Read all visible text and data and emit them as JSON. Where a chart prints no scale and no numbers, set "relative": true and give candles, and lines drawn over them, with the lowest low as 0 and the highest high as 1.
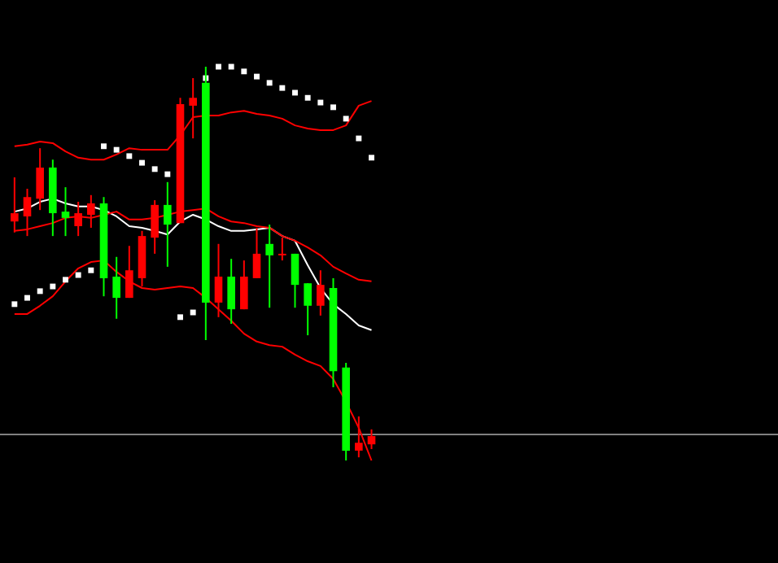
{
  "chart_data": {
    "type": "candlestick",
    "relative": true,
    "categories": [
      null,
      null,
      null,
      null,
      null,
      null,
      null,
      null,
      null,
      null,
      null,
      null,
      null,
      null,
      null,
      null,
      null,
      null,
      null,
      null,
      null,
      null,
      null,
      null,
      null,
      null,
      null,
      null,
      null,
      null,
      null,
      null,
      null,
      null,
      null,
      null,
      null,
      null,
      null,
      null,
      null,
      null,
      null,
      null,
      null,
      null,
      null,
      null,
      null,
      null,
      null,
      null,
      null,
      null,
      null,
      null,
      null,
      null,
      null,
      null
    ],
    "ohlc": [
      [
        0.607,
        0.719,
        0.579,
        0.628
      ],
      [
        0.62,
        0.69,
        0.57,
        0.669
      ],
      [
        0.665,
        0.793,
        0.636,
        0.744
      ],
      [
        0.744,
        0.764,
        0.57,
        0.628
      ],
      [
        0.632,
        0.694,
        0.57,
        0.616
      ],
      [
        0.595,
        0.657,
        0.57,
        0.628
      ],
      [
        0.624,
        0.674,
        0.591,
        0.653
      ],
      [
        0.653,
        0.669,
        0.417,
        0.463
      ],
      [
        0.467,
        0.517,
        0.36,
        0.413
      ],
      [
        0.413,
        0.545,
        0.413,
        0.483
      ],
      [
        0.463,
        0.583,
        0.442,
        0.57
      ],
      [
        0.566,
        0.661,
        0.525,
        0.649
      ],
      [
        0.649,
        0.707,
        0.492,
        0.599
      ],
      [
        0.603,
        0.921,
        0.603,
        0.905
      ],
      [
        0.901,
        0.971,
        0.818,
        0.921
      ],
      [
        0.959,
        1,
        0.306,
        0.401
      ],
      [
        0.401,
        0.55,
        0.364,
        0.467
      ],
      [
        0.467,
        0.512,
        0.347,
        0.384
      ],
      [
        0.384,
        0.508,
        0.384,
        0.467
      ],
      [
        0.463,
        0.591,
        0.463,
        0.525
      ],
      [
        0.55,
        0.599,
        0.388,
        0.521
      ],
      [
        0.521,
        0.566,
        0.508,
        0.525
      ],
      [
        0.525,
        0.525,
        0.388,
        0.446
      ],
      [
        0.45,
        0.45,
        0.318,
        0.393
      ],
      [
        0.393,
        0.483,
        0.368,
        0.446
      ],
      [
        0.438,
        0.463,
        0.186,
        0.227
      ],
      [
        0.236,
        0.248,
        0,
        0.025
      ],
      [
        0.025,
        0.112,
        0.008,
        0.045
      ],
      [
        0.041,
        0.079,
        0.029,
        0.062
      ],
      null,
      null,
      null,
      null,
      null,
      null,
      null,
      null,
      null,
      null,
      null,
      null,
      null,
      null,
      null,
      null,
      null,
      null,
      null,
      null,
      null,
      null,
      null,
      null,
      null,
      null,
      null,
      null,
      null,
      null,
      null
    ],
    "colors": [
      "#ff0000",
      "#ff0000",
      "#ff0000",
      "#00ff00",
      "#00ff00",
      "#ff0000",
      "#ff0000",
      "#00ff00",
      "#00ff00",
      "#ff0000",
      "#ff0000",
      "#ff0000",
      "#00ff00",
      "#ff0000",
      "#ff0000",
      "#00ff00",
      "#ff0000",
      "#00ff00",
      "#ff0000",
      "#ff0000",
      "#00ff00",
      "#ff0000",
      "#00ff00",
      "#00ff00",
      "#ff0000",
      "#00ff00",
      "#00ff00",
      "#ff0000",
      "#ff0000",
      null,
      null,
      null,
      null,
      null,
      null,
      null,
      null,
      null,
      null,
      null,
      null,
      null,
      null,
      null,
      null,
      null,
      null,
      null,
      null,
      null,
      null,
      null,
      null,
      null,
      null,
      null,
      null,
      null,
      null,
      null
    ],
    "series": [
      {
        "type": "line",
        "color": "#ff0000",
        "values": [
          0.798,
          0.802,
          0.81,
          0.806,
          0.785,
          0.769,
          0.764,
          0.764,
          0.777,
          0.793,
          0.789,
          0.789,
          0.789,
          0.826,
          0.872,
          0.876,
          0.876,
          0.884,
          0.888,
          0.88,
          0.876,
          0.868,
          0.851,
          0.843,
          0.839,
          0.839,
          0.851,
          0.901,
          0.913,
          null,
          null,
          null,
          null,
          null,
          null,
          null,
          null,
          null,
          null,
          null,
          null,
          null,
          null,
          null,
          null,
          null,
          null,
          null,
          null,
          null,
          null,
          null,
          null,
          null,
          null,
          null,
          null,
          null,
          null,
          null
        ]
      },
      {
        "type": "line",
        "color": "#ffffff",
        "values": [
          0.632,
          0.64,
          0.657,
          0.665,
          0.653,
          0.645,
          0.645,
          0.636,
          0.62,
          0.595,
          0.591,
          0.583,
          0.574,
          0.607,
          0.624,
          0.612,
          0.595,
          0.583,
          0.583,
          0.587,
          0.591,
          0.57,
          0.558,
          0.496,
          0.438,
          0.397,
          0.372,
          0.343,
          0.331,
          null,
          null,
          null,
          null,
          null,
          null,
          null,
          null,
          null,
          null,
          null,
          null,
          null,
          null,
          null,
          null,
          null,
          null,
          null,
          null,
          null,
          null,
          null,
          null,
          null,
          null,
          null,
          null,
          null,
          null,
          null
        ]
      },
      {
        "type": "line",
        "color": "#ff0000",
        "values": [
          0.583,
          0.587,
          0.595,
          0.603,
          0.616,
          0.62,
          0.616,
          0.624,
          0.632,
          0.612,
          0.612,
          0.616,
          0.624,
          0.632,
          0.636,
          0.64,
          0.62,
          0.607,
          0.603,
          0.595,
          0.591,
          0.57,
          0.558,
          0.541,
          0.521,
          0.492,
          0.475,
          0.459,
          0.455,
          null,
          null,
          null,
          null,
          null,
          null,
          null,
          null,
          null,
          null,
          null,
          null,
          null,
          null,
          null,
          null,
          null,
          null,
          null,
          null,
          null,
          null,
          null,
          null,
          null,
          null,
          null,
          null,
          null,
          null,
          null
        ]
      },
      {
        "type": "line",
        "color": "#ff0000",
        "values": [
          0.372,
          0.372,
          0.393,
          0.417,
          0.455,
          0.488,
          0.504,
          0.508,
          0.479,
          0.455,
          0.438,
          0.434,
          0.438,
          0.442,
          0.438,
          0.413,
          0.384,
          0.355,
          0.322,
          0.302,
          0.293,
          0.289,
          0.269,
          0.252,
          0.24,
          0.207,
          0.149,
          0.083,
          0,
          null,
          null,
          null,
          null,
          null,
          null,
          null,
          null,
          null,
          null,
          null,
          null,
          null,
          null,
          null,
          null,
          null,
          null,
          null,
          null,
          null,
          null,
          null,
          null,
          null,
          null,
          null,
          null,
          null,
          null,
          null
        ]
      },
      {
        "type": "scatter",
        "color": "#ffffff",
        "marker": "square",
        "values": [
          0.397,
          0.413,
          0.43,
          0.442,
          0.459,
          0.471,
          0.483,
          0.798,
          0.789,
          0.773,
          0.756,
          0.74,
          0.727,
          0.364,
          0.376,
          0.971,
          1,
          1,
          0.988,
          0.975,
          0.959,
          0.946,
          0.934,
          0.921,
          0.909,
          0.897,
          0.868,
          0.818,
          0.769,
          null,
          null,
          null,
          null,
          null,
          null,
          null,
          null,
          null,
          null,
          null,
          null,
          null,
          null,
          null,
          null,
          null,
          null,
          null,
          null,
          null,
          null,
          null,
          null,
          null,
          null,
          null,
          null,
          null,
          null,
          null
        ]
      }
    ],
    "ref_lines": [
      {
        "axis": "y",
        "value": 0.066,
        "color": "#808080"
      }
    ]
  }
}
